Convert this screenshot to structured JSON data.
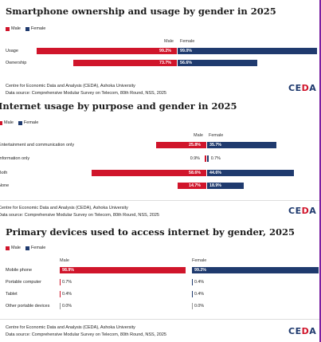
{
  "colors": {
    "male": "#d0152b",
    "female": "#1f3a6e",
    "logo_blue": "#1f3a6e",
    "logo_red": "#d0152b"
  },
  "panels": [
    {
      "title": "Smartphone ownership and usage by gender in 2025",
      "legend": [
        "Male",
        "Female"
      ],
      "headers": {
        "male": "Male",
        "female": "Female"
      },
      "footer_line1": "Centre for Economic Data and Analysis (CEDA), Ashoka University",
      "footer_line2": "Data source: Comprehensive Modular Survey on Telecom, 80th Round, NSS, 2025",
      "logo": "CEDA"
    },
    {
      "title": "Internet usage by purpose and gender in 2025",
      "legend": [
        "Male",
        "Female"
      ],
      "headers": {
        "male": "Male",
        "female": "Female"
      },
      "footer_line1": "Centre for Economic Data and Analysis (CEDA), Ashoka University",
      "footer_line2": "Data source: Comprehensive Modular Survey on Telecom, 80th Round, NSS, 2025",
      "logo": "CEDA"
    },
    {
      "title": "Primary devices used to access internet by gender, 2025",
      "legend": [
        "Male",
        "Female"
      ],
      "headers": {
        "male": "Male",
        "female": "Female"
      },
      "footer_line1": "Centre for Economic Data and Analysis (CEDA), Ashoka University",
      "footer_line2": "Data source: Comprehensive Modular Survey on Telecom, 80th Round, NSS, 2025",
      "logo": "CEDA"
    }
  ],
  "chart_data": [
    {
      "type": "bar",
      "title": "Smartphone ownership and usage by gender in 2025",
      "categories": [
        "Usage",
        "Ownership"
      ],
      "series": [
        {
          "name": "Male",
          "values": [
            99.2,
            73.7
          ],
          "labels": [
            "99.2%",
            "73.7%"
          ]
        },
        {
          "name": "Female",
          "values": [
            99.0,
            56.6
          ],
          "labels": [
            "99.0%",
            "56.6%"
          ]
        }
      ],
      "unit": "%"
    },
    {
      "type": "bar",
      "title": "Internet usage by purpose and gender in 2025",
      "categories": [
        "Entertainment and communication only",
        "Information only",
        "Both",
        "None"
      ],
      "series": [
        {
          "name": "Male",
          "values": [
            25.8,
            0.9,
            58.6,
            14.7
          ],
          "labels": [
            "25.8%",
            "0.9%",
            "58.6%",
            "14.7%"
          ]
        },
        {
          "name": "Female",
          "values": [
            35.7,
            0.7,
            44.6,
            18.9
          ],
          "labels": [
            "35.7%",
            "0.7%",
            "44.6%",
            "18.9%"
          ]
        }
      ],
      "unit": "%"
    },
    {
      "type": "bar",
      "title": "Primary devices used to access internet by gender, 2025",
      "categories": [
        "Mobile phone",
        "Portable computer",
        "Tablet",
        "Other portable devices"
      ],
      "series": [
        {
          "name": "Male",
          "values": [
            98.9,
            0.7,
            0.4,
            0.0
          ],
          "labels": [
            "98.9%",
            "0.7%",
            "0.4%",
            "0.0%"
          ]
        },
        {
          "name": "Female",
          "values": [
            99.2,
            0.4,
            0.4,
            0.0
          ],
          "labels": [
            "99.2%",
            "0.4%",
            "0.4%",
            "0.0%"
          ]
        }
      ],
      "unit": "%"
    }
  ]
}
